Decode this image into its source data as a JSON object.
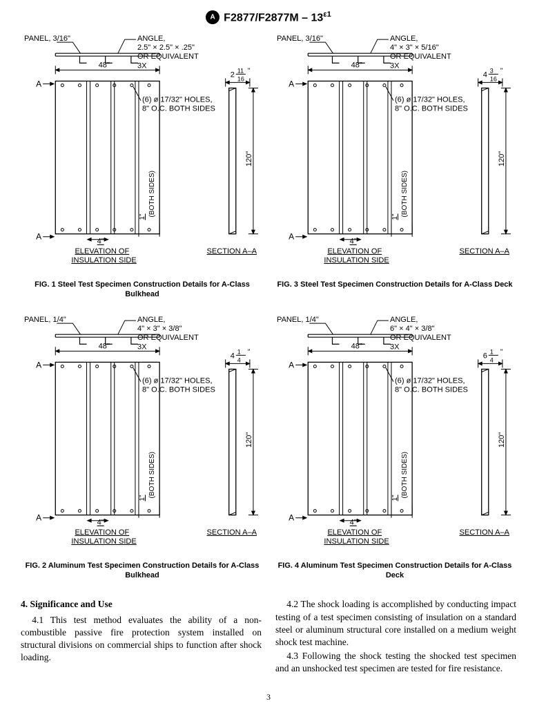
{
  "header": {
    "designation": "F2877/F2877M – 13",
    "epsilon": "ε1"
  },
  "figures": [
    {
      "col": "left",
      "panel_label": "PANEL, 3/16\"",
      "angle_top": "ANGLE,",
      "angle_spec": "2.5\" × 2.5\" × .25\"",
      "angle_note": "OR EQUIVALENT",
      "angle_qty": "3X",
      "width_dim": "48\"",
      "holes_label1": "(6) ø 17/32\" HOLES,",
      "holes_label2": "8\" O.C. BOTH SIDES",
      "both_sides": "(BOTH SIDES)",
      "one_inch": "1\"",
      "four_inch": "4\"",
      "height_dim": "120\"",
      "section_w_whole": "2",
      "section_w_num": "11",
      "section_w_den": "16",
      "elev_label1": "ELEVATION OF",
      "elev_label2": "INSULATION SIDE",
      "section_label": "SECTION A–A",
      "caption": "FIG. 1 Steel Test Specimen Construction Details for A-Class Bulkhead"
    },
    {
      "col": "right",
      "panel_label": "PANEL, 3/16\"",
      "angle_top": "ANGLE,",
      "angle_spec": "4\" × 3\" × 5/16\"",
      "angle_note": "OR EQUIVALENT",
      "angle_qty": "3X",
      "width_dim": "48\"",
      "holes_label1": "(6) ø 17/32\" HOLES,",
      "holes_label2": "8\" O.C. BOTH SIDES",
      "both_sides": "(BOTH SIDES)",
      "one_inch": "1\"",
      "four_inch": "4\"",
      "height_dim": "120\"",
      "section_w_whole": "4",
      "section_w_num": "3",
      "section_w_den": "16",
      "elev_label1": "ELEVATION OF",
      "elev_label2": "INSULATION SIDE",
      "section_label": "SECTION A–A",
      "caption": "FIG. 3 Steel Test Specimen Construction Details for A-Class Deck"
    },
    {
      "col": "left",
      "panel_label": "PANEL, 1/4\"",
      "angle_top": "ANGLE,",
      "angle_spec": "4\" × 3\" × 3/8\"",
      "angle_note": "OR EQUIVALENT",
      "angle_qty": "3X",
      "width_dim": "48\"",
      "holes_label1": "(6) ø 17/32\" HOLES,",
      "holes_label2": "8\" O.C. BOTH SIDES",
      "both_sides": "(BOTH SIDES)",
      "one_inch": "1\"",
      "four_inch": "4\"",
      "height_dim": "120\"",
      "section_w_whole": "4",
      "section_w_num": "1",
      "section_w_den": "4",
      "elev_label1": "ELEVATION OF",
      "elev_label2": "INSULATION SIDE",
      "section_label": "SECTION A–A",
      "caption": "FIG. 2 Aluminum Test Specimen Construction Details for A-Class Bulkhead"
    },
    {
      "col": "right",
      "panel_label": "PANEL, 1/4\"",
      "angle_top": "ANGLE,",
      "angle_spec": "6\" × 4\" × 3/8\"",
      "angle_note": "OR EQUIVALENT",
      "angle_qty": "3X",
      "width_dim": "48\"",
      "holes_label1": "(6) ø 17/32\" HOLES,",
      "holes_label2": "8\" O.C. BOTH SIDES",
      "both_sides": "(BOTH SIDES)",
      "one_inch": "1\"",
      "four_inch": "4\"",
      "height_dim": "120\"",
      "section_w_whole": "6",
      "section_w_num": "1",
      "section_w_den": "4",
      "elev_label1": "ELEVATION OF",
      "elev_label2": "INSULATION SIDE",
      "section_label": "SECTION A–A",
      "caption": "FIG. 4 Aluminum Test Specimen Construction Details for A-Class Deck"
    }
  ],
  "body": {
    "section_heading": "4. Significance and Use",
    "para41": "4.1 This test method evaluates the ability of a non-combustible passive fire protection system installed on structural divisions on commercial ships to function after shock loading.",
    "para42": "4.2 The shock loading is accomplished by conducting impact testing of a test specimen consisting of insulation on a standard steel or aluminum structural core installed on a medium weight shock test machine.",
    "para43": "4.3 Following the shock testing the shocked test specimen and an unshocked test specimen are tested for fire resistance."
  },
  "page_number": "3",
  "style": {
    "line_color": "#000000",
    "background": "#ffffff",
    "label_font": "Arial, Helvetica, sans-serif",
    "body_font": "Times New Roman, serif",
    "caption_size": 11,
    "label_size": 11
  }
}
